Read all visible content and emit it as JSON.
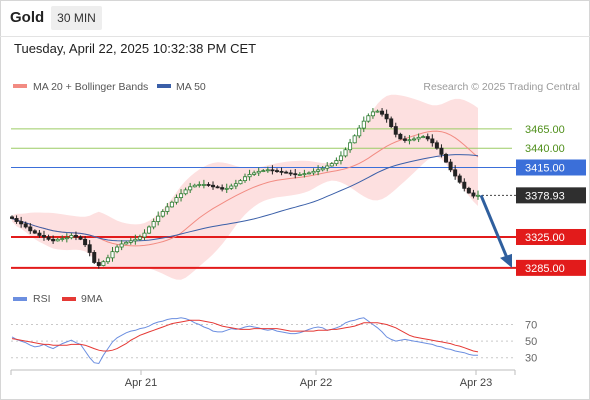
{
  "header": {
    "symbol": "Gold",
    "timeframe": "30 MIN"
  },
  "datetime": "Tuesday, April 22, 2025 10:32:38 PM CET",
  "legend": [
    {
      "label": "MA 20 + Bollinger Bands",
      "color": "#f28b82"
    },
    {
      "label": "MA 50",
      "color": "#3a5fa8"
    }
  ],
  "credit": "Research © 2025 Trading Central",
  "colors": {
    "up": "#2e7d32",
    "down": "#222222",
    "band": "#fde0e0",
    "rsi": "#6c8fe0",
    "rsi_ma": "#e53935",
    "arrow": "#2f5f9e"
  },
  "chart_data": [
    {
      "type": "candlestick",
      "title": "Gold",
      "timeframe": "30 MIN",
      "x_tick_labels": [
        "Apr 21",
        "Apr 22",
        "Apr 23"
      ],
      "y_range": [
        3268,
        3505
      ],
      "levels": [
        {
          "value": 3465.0,
          "label": "3465.00",
          "color": "#9ccc65",
          "text_color": "#4f8f1a",
          "kind": "resistance"
        },
        {
          "value": 3440.0,
          "label": "3440.00",
          "color": "#9ccc65",
          "text_color": "#4f8f1a",
          "kind": "resistance"
        },
        {
          "value": 3415.0,
          "label": "3415.00",
          "color": "#3b6fd9",
          "text_color": "#ffffff",
          "kind": "pivot"
        },
        {
          "value": 3325.0,
          "label": "3325.00",
          "color": "#e21b1b",
          "text_color": "#ffffff",
          "kind": "support"
        },
        {
          "value": 3285.0,
          "label": "3285.00",
          "color": "#e21b1b",
          "text_color": "#ffffff",
          "kind": "support"
        }
      ],
      "last_price": {
        "value": 3378.93,
        "label": "3378.93"
      },
      "forecast_arrow": {
        "from": 3378.93,
        "to": 3285.0
      },
      "series": [
        {
          "name": "MA 20 + Bollinger Bands",
          "color": "#f28b82"
        },
        {
          "name": "MA 50",
          "color": "#3a5fa8"
        }
      ],
      "close": [
        3349,
        3345,
        3342,
        3338,
        3333,
        3330,
        3327,
        3325,
        3322,
        3320,
        3322,
        3323,
        3324,
        3327,
        3325,
        3322,
        3315,
        3305,
        3292,
        3288,
        3293,
        3298,
        3306,
        3312,
        3316,
        3318,
        3320,
        3322,
        3325,
        3330,
        3338,
        3345,
        3352,
        3358,
        3364,
        3370,
        3376,
        3381,
        3386,
        3390,
        3392,
        3393,
        3393,
        3392,
        3390,
        3389,
        3387,
        3388,
        3391,
        3394,
        3398,
        3403,
        3406,
        3408,
        3410,
        3411,
        3412,
        3411,
        3410,
        3409,
        3408,
        3407,
        3406,
        3406,
        3407,
        3408,
        3410,
        3412,
        3414,
        3417,
        3420,
        3424,
        3430,
        3438,
        3447,
        3456,
        3466,
        3475,
        3482,
        3487,
        3488,
        3484,
        3478,
        3468,
        3458,
        3452,
        3450,
        3451,
        3452,
        3454,
        3455,
        3452,
        3447,
        3440,
        3432,
        3422,
        3412,
        3404,
        3396,
        3388,
        3382,
        3378,
        3379
      ]
    },
    {
      "type": "line",
      "title": "RSI",
      "y_ticks": [
        70,
        50,
        30
      ],
      "y_range": [
        20,
        85
      ],
      "series": [
        {
          "name": "RSI",
          "color": "#6c8fe0",
          "values": [
            55,
            52,
            50,
            48,
            45,
            43,
            44,
            46,
            43,
            41,
            44,
            47,
            49,
            51,
            48,
            46,
            38,
            30,
            24,
            23,
            33,
            41,
            49,
            54,
            57,
            60,
            62,
            63,
            65,
            66,
            68,
            71,
            73,
            74,
            76,
            77,
            77,
            78,
            77,
            75,
            72,
            70,
            67,
            65,
            62,
            61,
            61,
            63,
            65,
            64,
            65,
            67,
            68,
            67,
            66,
            64,
            63,
            64,
            62,
            61,
            60,
            59,
            59,
            60,
            62,
            64,
            66,
            67,
            66,
            63,
            64,
            66,
            68,
            72,
            74,
            75,
            77,
            78,
            74,
            70,
            66,
            61,
            55,
            52,
            50,
            51,
            52,
            51,
            50,
            49,
            48,
            47,
            46,
            44,
            43,
            41,
            40,
            38,
            37,
            36,
            34,
            33,
            33
          ]
        },
        {
          "name": "9MA",
          "color": "#e53935",
          "values": [
            53,
            52,
            51,
            50,
            49,
            48,
            47,
            46,
            46,
            45,
            45,
            45,
            45,
            46,
            46,
            46,
            45,
            43,
            41,
            39,
            38,
            38,
            39,
            41,
            44,
            47,
            51,
            54,
            57,
            59,
            61,
            63,
            65,
            67,
            69,
            71,
            72,
            73,
            74,
            75,
            75,
            75,
            74,
            73,
            72,
            70,
            68,
            67,
            66,
            65,
            64,
            64,
            64,
            65,
            65,
            65,
            65,
            65,
            65,
            64,
            63,
            62,
            62,
            62,
            62,
            62,
            62,
            63,
            63,
            63,
            64,
            64,
            65,
            66,
            67,
            68,
            70,
            72,
            72,
            72,
            72,
            71,
            70,
            68,
            66,
            63,
            60,
            57,
            55,
            54,
            53,
            52,
            51,
            50,
            49,
            48,
            47,
            45,
            44,
            42,
            40,
            38,
            37
          ]
        }
      ]
    }
  ]
}
